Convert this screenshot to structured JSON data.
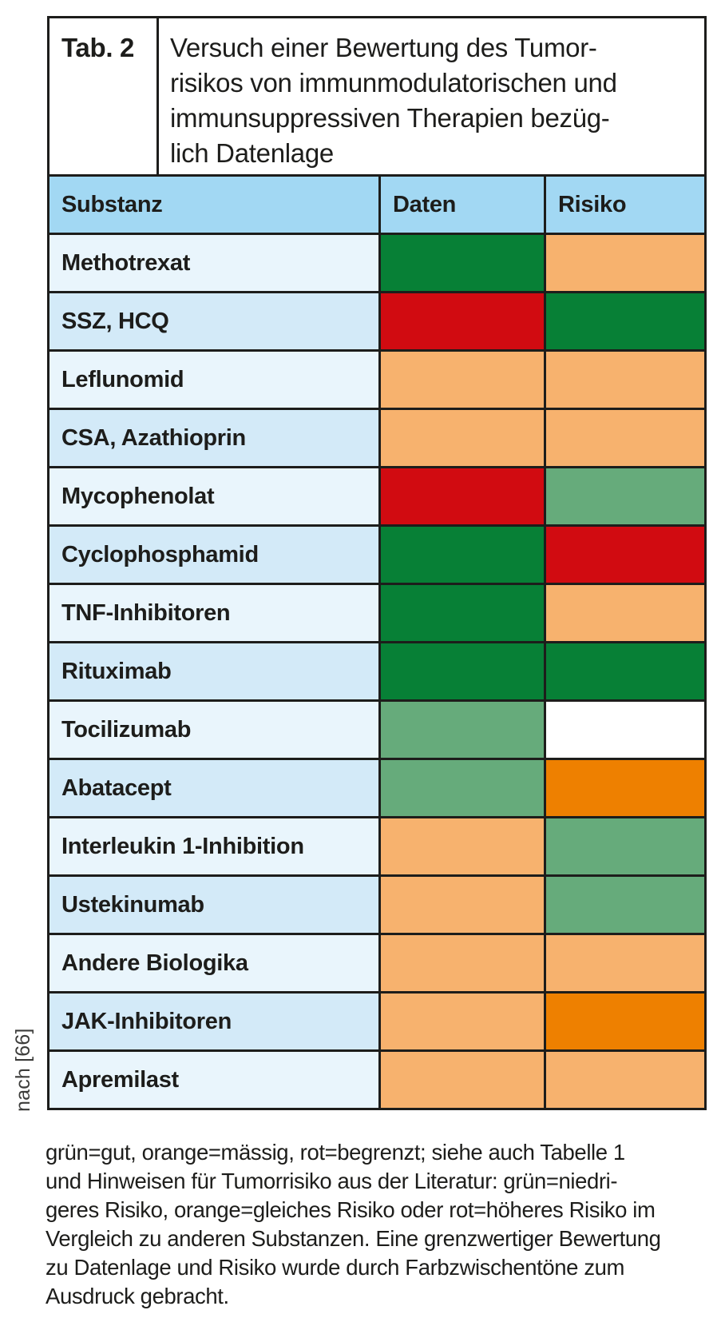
{
  "table": {
    "tag": "Tab. 2",
    "title_lines": [
      "Versuch einer Bewertung des Tumor-",
      "risikos von immunmodulatorischen und",
      "immunsuppressiven Therapien bezüg-",
      "lich Datenlage"
    ],
    "columns": [
      "Substanz",
      "Daten",
      "Risiko"
    ],
    "rows": [
      {
        "substance": "Methotrexat",
        "daten": "dark_green",
        "risiko": "light_orange"
      },
      {
        "substance": "SSZ, HCQ",
        "daten": "red",
        "risiko": "dark_green"
      },
      {
        "substance": "Leflunomid",
        "daten": "light_orange",
        "risiko": "light_orange"
      },
      {
        "substance": "CSA, Azathioprin",
        "daten": "light_orange",
        "risiko": "light_orange"
      },
      {
        "substance": "Mycophenolat",
        "daten": "red",
        "risiko": "medium_green"
      },
      {
        "substance": "Cyclophosphamid",
        "daten": "dark_green",
        "risiko": "red"
      },
      {
        "substance": "TNF-Inhibitoren",
        "daten": "dark_green",
        "risiko": "light_orange"
      },
      {
        "substance": "Rituximab",
        "daten": "dark_green",
        "risiko": "dark_green"
      },
      {
        "substance": "Tocilizumab",
        "daten": "medium_green",
        "risiko": "white"
      },
      {
        "substance": "Abatacept",
        "daten": "medium_green",
        "risiko": "dark_orange"
      },
      {
        "substance": "Interleukin 1-Inhibition",
        "daten": "light_orange",
        "risiko": "medium_green"
      },
      {
        "substance": "Ustekinumab",
        "daten": "light_orange",
        "risiko": "medium_green"
      },
      {
        "substance": "Andere Biologika",
        "daten": "light_orange",
        "risiko": "light_orange"
      },
      {
        "substance": "JAK-Inhibitoren",
        "daten": "light_orange",
        "risiko": "dark_orange"
      },
      {
        "substance": "Apremilast",
        "daten": "light_orange",
        "risiko": "light_orange"
      }
    ]
  },
  "rating_colors": {
    "dark_green": "#078036",
    "medium_green": "#66ab7b",
    "red": "#d10b11",
    "light_orange": "#f7b26e",
    "dark_orange": "#ee8000",
    "white": "#ffffff"
  },
  "palette": {
    "header_blue": "#a2d8f3",
    "row_blue_light": "#e9f5fc",
    "row_blue_mid": "#d3eaf8",
    "border": "#1d1d1b"
  },
  "source_note": "nach [66]",
  "footnote_lines": [
    "grün=gut, orange=mässig, rot=begrenzt; siehe auch Tabelle 1",
    "und Hinweisen für Tumorrisiko aus der Literatur: grün=niedri-",
    "geres Risiko, orange=gleiches Risiko oder rot=höheres Risiko im",
    "Vergleich zu anderen Substanzen. Eine grenzwertiger Bewertung",
    "zu Datenlage und Risiko wurde durch Farbzwischentöne zum",
    "Ausdruck gebracht."
  ]
}
